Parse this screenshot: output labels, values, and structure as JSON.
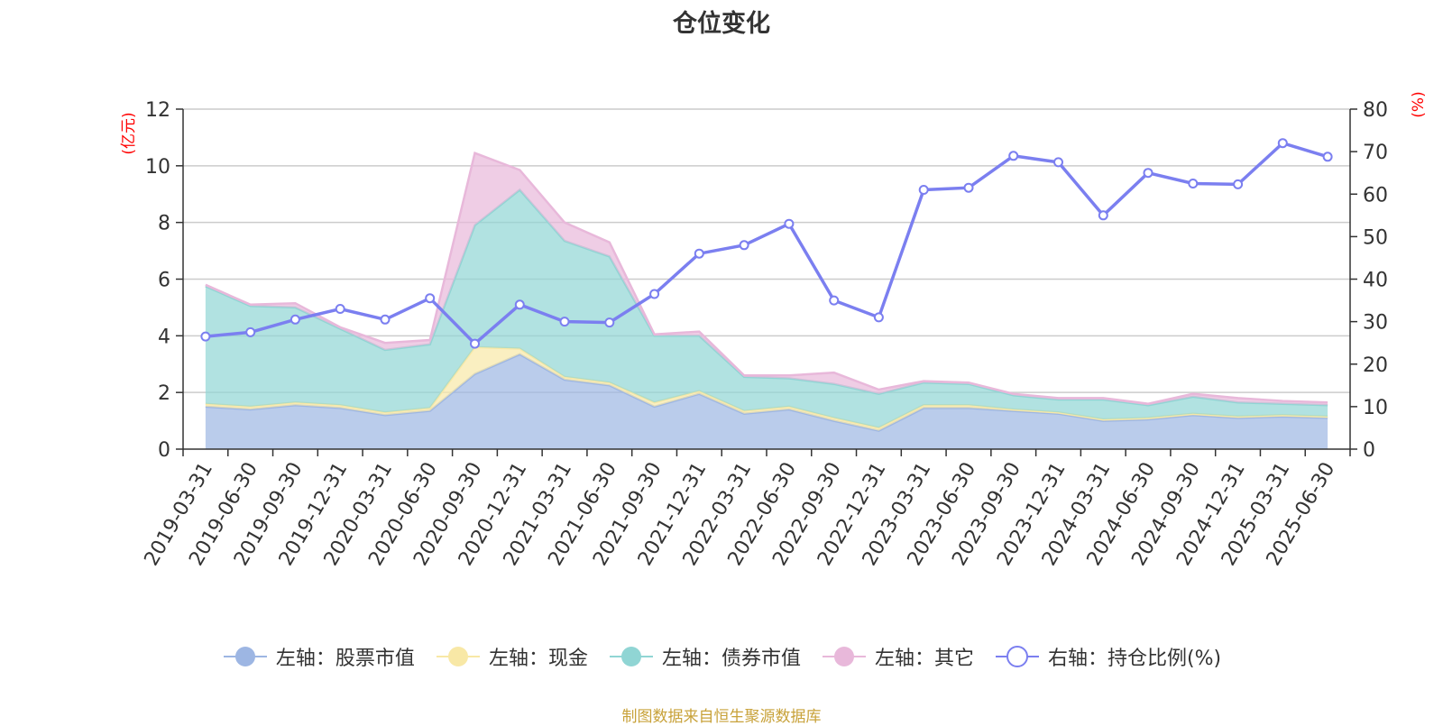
{
  "title": "仓位变化",
  "source_note": "制图数据来自恒生聚源数据库",
  "chart_data": {
    "type": "area",
    "categories": [
      "2019-03-31",
      "2019-06-30",
      "2019-09-30",
      "2019-12-31",
      "2020-03-31",
      "2020-06-30",
      "2020-09-30",
      "2020-12-31",
      "2021-03-31",
      "2021-06-30",
      "2021-09-30",
      "2021-12-31",
      "2022-03-31",
      "2022-06-30",
      "2022-09-30",
      "2022-12-31",
      "2023-03-31",
      "2023-06-30",
      "2023-09-30",
      "2023-12-31",
      "2024-03-31",
      "2024-06-30",
      "2024-09-30",
      "2024-12-31",
      "2025-03-31",
      "2025-06-30"
    ],
    "y_left": {
      "label": "(亿元)",
      "min": 0,
      "max": 12,
      "ticks": [
        0,
        2,
        4,
        6,
        8,
        10,
        12
      ]
    },
    "y_right": {
      "label": "(%)",
      "min": 0,
      "max": 80,
      "ticks": [
        0,
        10,
        20,
        30,
        40,
        50,
        60,
        70,
        80
      ]
    },
    "stacked_series": [
      {
        "name": "左轴：股票市值",
        "color": "#9db6e3",
        "values": [
          1.5,
          1.4,
          1.55,
          1.45,
          1.2,
          1.35,
          2.65,
          3.35,
          2.45,
          2.25,
          1.5,
          1.95,
          1.25,
          1.4,
          1.0,
          0.65,
          1.45,
          1.45,
          1.35,
          1.25,
          1.0,
          1.05,
          1.2,
          1.1,
          1.15,
          1.1
        ]
      },
      {
        "name": "左轴：现金",
        "color": "#f8e8a6",
        "values": [
          0.1,
          0.1,
          0.1,
          0.1,
          0.1,
          0.1,
          0.95,
          0.2,
          0.1,
          0.1,
          0.15,
          0.1,
          0.1,
          0.1,
          0.1,
          0.1,
          0.1,
          0.1,
          0.05,
          0.05,
          0.05,
          0.05,
          0.05,
          0.05,
          0.05,
          0.05
        ]
      },
      {
        "name": "左轴：债券市值",
        "color": "#90d5d4",
        "values": [
          4.15,
          3.55,
          3.35,
          2.7,
          2.2,
          2.25,
          4.3,
          5.6,
          4.8,
          4.45,
          2.35,
          1.95,
          1.2,
          1.0,
          1.2,
          1.2,
          0.8,
          0.75,
          0.5,
          0.45,
          0.7,
          0.45,
          0.6,
          0.5,
          0.4,
          0.4
        ]
      },
      {
        "name": "左轴：其它",
        "color": "#e8b8da",
        "values": [
          0.05,
          0.05,
          0.15,
          0.05,
          0.25,
          0.15,
          2.55,
          0.7,
          0.65,
          0.5,
          0.05,
          0.15,
          0.05,
          0.1,
          0.4,
          0.15,
          0.05,
          0.05,
          0.05,
          0.05,
          0.05,
          0.05,
          0.1,
          0.15,
          0.1,
          0.1
        ]
      }
    ],
    "line_series": {
      "name": "右轴：持仓比例(%)",
      "color": "#7b7ff0",
      "values": [
        26.5,
        27.5,
        30.5,
        33.0,
        30.5,
        35.5,
        24.8,
        34.0,
        30.0,
        29.8,
        36.5,
        46.0,
        48.0,
        53.0,
        35.0,
        31.0,
        61.0,
        61.5,
        69.0,
        67.5,
        55.0,
        65.0,
        62.5,
        62.3,
        72.0,
        68.8
      ]
    },
    "legend_position": "bottom"
  }
}
